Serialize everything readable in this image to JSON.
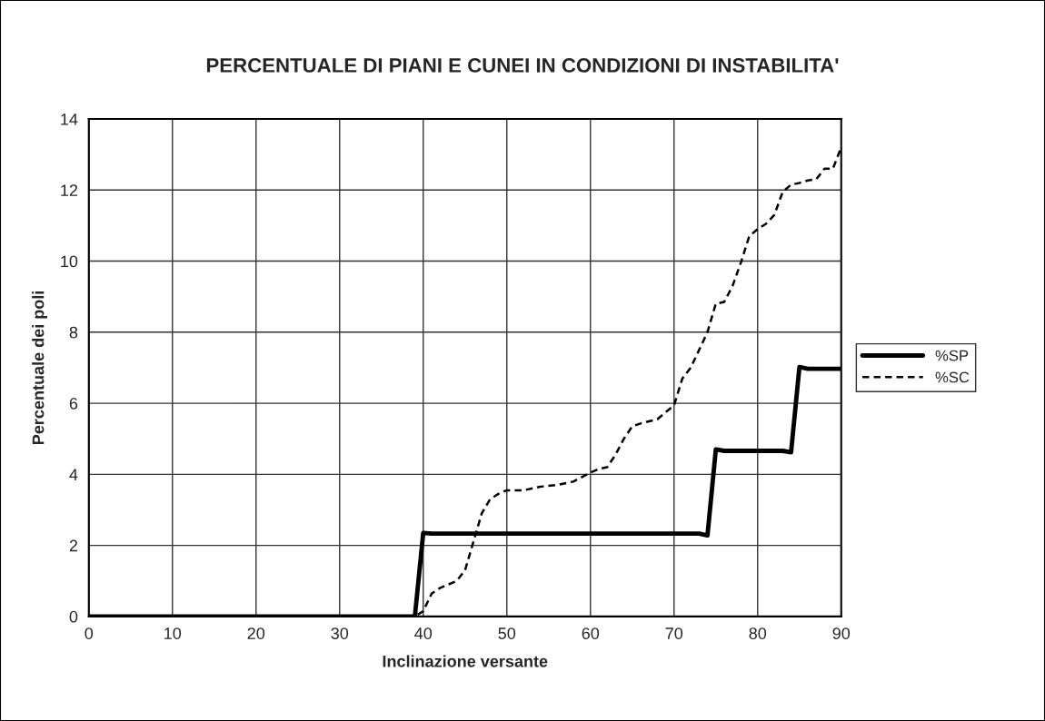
{
  "chart_data": {
    "type": "line",
    "title": "PERCENTUALE DI PIANI E CUNEI IN CONDIZIONI DI INSTABILITA'",
    "xlabel": "Inclinazione versante",
    "ylabel": "Percentuale dei poli",
    "xlim": [
      0,
      90
    ],
    "xticks": [
      0,
      10,
      20,
      30,
      40,
      50,
      60,
      70,
      80,
      90
    ],
    "ylim": [
      0,
      14
    ],
    "yticks": [
      0,
      2,
      4,
      6,
      8,
      10,
      12,
      14
    ],
    "grid": true,
    "legend": "right",
    "marker": "none",
    "series": [
      {
        "name": "%SP",
        "color": "#000000",
        "line_style": "solid",
        "x": [
          0,
          10,
          20,
          30,
          39,
          40,
          41,
          50,
          60,
          70,
          73,
          74,
          75,
          76,
          80,
          83,
          84,
          85,
          86,
          90
        ],
        "values": [
          0,
          0,
          0,
          0,
          0,
          2.35,
          2.33,
          2.33,
          2.33,
          2.33,
          2.33,
          2.28,
          4.7,
          4.66,
          4.66,
          4.66,
          4.62,
          7.02,
          6.97,
          6.97
        ]
      },
      {
        "name": "%SC",
        "color": "#000000",
        "line_style": "dashed",
        "x": [
          0,
          10,
          20,
          30,
          39,
          40,
          41,
          42,
          43,
          44,
          45,
          46,
          47,
          48,
          49,
          50,
          52,
          54,
          56,
          58,
          60,
          61,
          62,
          63,
          64,
          65,
          66,
          68,
          70,
          71,
          72,
          73,
          74,
          75,
          76,
          77,
          78,
          79,
          80,
          81,
          82,
          83,
          84,
          85,
          86,
          87,
          88,
          89,
          90
        ],
        "values": [
          0,
          0,
          0,
          0,
          0,
          0.15,
          0.64,
          0.8,
          0.9,
          1.0,
          1.3,
          2.1,
          2.9,
          3.3,
          3.45,
          3.55,
          3.55,
          3.65,
          3.7,
          3.8,
          4.05,
          4.15,
          4.2,
          4.55,
          5.0,
          5.35,
          5.43,
          5.55,
          5.94,
          6.7,
          7.0,
          7.5,
          8.0,
          8.8,
          8.85,
          9.3,
          9.96,
          10.7,
          10.9,
          11.05,
          11.3,
          11.95,
          12.15,
          12.2,
          12.27,
          12.3,
          12.6,
          12.6,
          13.2
        ]
      }
    ]
  }
}
